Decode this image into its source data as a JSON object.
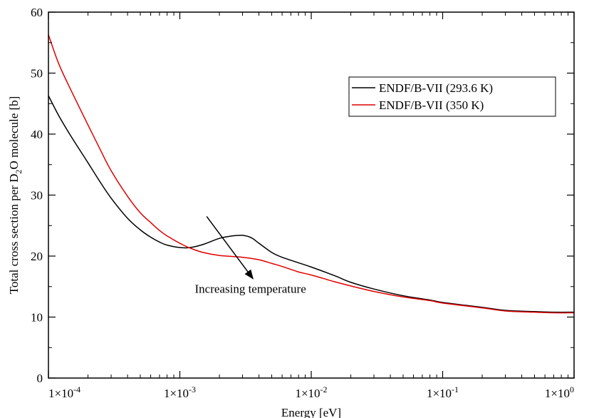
{
  "chart_data": {
    "type": "line",
    "title": "",
    "xlabel": "Energy [eV]",
    "ylabel": {
      "before": "Total cross section per D",
      "sub": "2",
      "after": "O molecule [b]"
    },
    "xscale": "log",
    "xlim": [
      0.0001,
      1
    ],
    "ylim": [
      0,
      60
    ],
    "grid": false,
    "legend_position": "top-right",
    "x_ticks": [
      {
        "value": 0.0001,
        "mantissa": "1×10",
        "exp": "-4"
      },
      {
        "value": 0.001,
        "mantissa": "1×10",
        "exp": "-3"
      },
      {
        "value": 0.01,
        "mantissa": "1×10",
        "exp": "-2"
      },
      {
        "value": 0.1,
        "mantissa": "1×10",
        "exp": "-1"
      },
      {
        "value": 1,
        "mantissa": "1×10",
        "exp": "0"
      }
    ],
    "y_ticks": [
      {
        "value": 0,
        "label": "0"
      },
      {
        "value": 10,
        "label": "10"
      },
      {
        "value": 20,
        "label": "20"
      },
      {
        "value": 30,
        "label": "30"
      },
      {
        "value": 40,
        "label": "40"
      },
      {
        "value": 50,
        "label": "50"
      },
      {
        "value": 60,
        "label": "60"
      }
    ],
    "series": [
      {
        "name": "ENDF/B-VII (293.6 K)",
        "color": "#000000",
        "x": [
          0.0001,
          0.00012,
          0.00015,
          0.0002,
          0.00025,
          0.0003,
          0.0004,
          0.0005,
          0.0006,
          0.0007,
          0.0008,
          0.001,
          0.0012,
          0.0015,
          0.002,
          0.0025,
          0.003,
          0.0035,
          0.004,
          0.005,
          0.006,
          0.008,
          0.01,
          0.015,
          0.02,
          0.03,
          0.05,
          0.08,
          0.1,
          0.2,
          0.3,
          0.5,
          0.7,
          1.0
        ],
        "y": [
          46.3,
          43.0,
          39.5,
          35.3,
          32.0,
          29.5,
          26.2,
          24.3,
          23.1,
          22.3,
          21.8,
          21.4,
          21.4,
          21.9,
          22.9,
          23.3,
          23.4,
          23.0,
          22.1,
          20.6,
          19.8,
          18.9,
          18.2,
          16.8,
          15.7,
          14.6,
          13.5,
          12.8,
          12.4,
          11.6,
          11.1,
          10.9,
          10.8,
          10.8
        ]
      },
      {
        "name": "ENDF/B-VII (350 K)",
        "color": "#e00000",
        "x": [
          0.0001,
          0.00012,
          0.00015,
          0.0002,
          0.00025,
          0.0003,
          0.0004,
          0.0005,
          0.0006,
          0.0007,
          0.0008,
          0.001,
          0.0012,
          0.0015,
          0.002,
          0.003,
          0.004,
          0.005,
          0.006,
          0.008,
          0.01,
          0.015,
          0.02,
          0.03,
          0.05,
          0.08,
          0.1,
          0.2,
          0.3,
          0.5,
          0.7,
          1.0
        ],
        "y": [
          56.3,
          51.5,
          47.0,
          41.5,
          37.3,
          34.0,
          29.8,
          27.1,
          25.5,
          24.2,
          23.3,
          22.1,
          21.3,
          20.6,
          20.1,
          19.8,
          19.4,
          18.8,
          18.3,
          17.4,
          16.9,
          15.8,
          15.1,
          14.2,
          13.3,
          12.7,
          12.3,
          11.5,
          11.0,
          10.8,
          10.7,
          10.7
        ]
      }
    ],
    "annotation": {
      "text": "Increasing temperature",
      "arrow_from": {
        "x": 0.0016,
        "y": 26.5
      },
      "arrow_to": {
        "x": 0.0036,
        "y": 16.3
      },
      "text_at": {
        "x": 0.0013,
        "y": 14.0
      }
    }
  }
}
